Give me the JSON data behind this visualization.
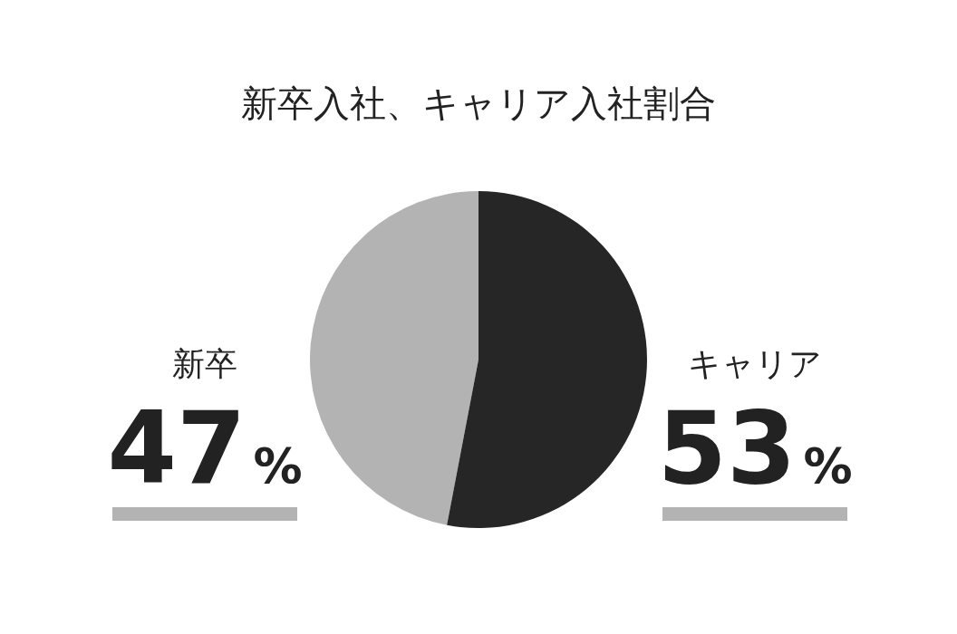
{
  "chart_data": {
    "type": "pie",
    "title": "新卒入社、キャリア入社割合",
    "categories": [
      "新卒",
      "キャリア"
    ],
    "values": [
      47,
      53
    ],
    "colors": [
      "#b3b3b3",
      "#262626"
    ],
    "value_labels": [
      "47%",
      "53%"
    ]
  }
}
